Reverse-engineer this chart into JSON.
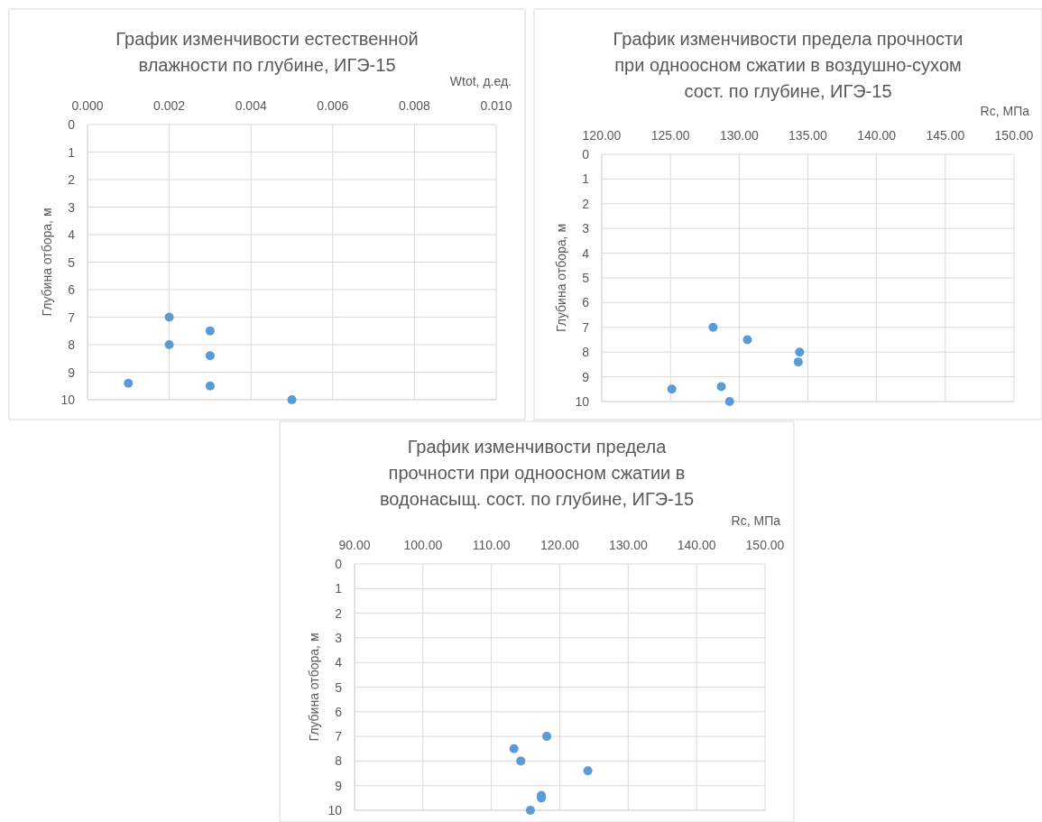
{
  "chart_data": [
    {
      "type": "scatter",
      "title": "График изменчивости естественной влажности по глубине, ИГЭ-15",
      "xlabel": "Wtot, д.ед.",
      "ylabel": "Глубина отбора, м",
      "grid": true,
      "marker": "circle",
      "xlim": [
        0,
        0.01
      ],
      "xticks": [
        {
          "value": 0,
          "label": "0.000"
        },
        {
          "value": 0.002,
          "label": "0.002"
        },
        {
          "value": 0.004,
          "label": "0.004"
        },
        {
          "value": 0.006,
          "label": "0.006"
        },
        {
          "value": 0.008,
          "label": "0.008"
        },
        {
          "value": 0.01,
          "label": "0.010"
        }
      ],
      "ylim": [
        10,
        0
      ],
      "yticks": [
        0,
        1,
        2,
        3,
        4,
        5,
        6,
        7,
        8,
        9,
        10
      ],
      "series": [
        {
          "color": "#5b9bd5",
          "x": [
            0.002,
            0.003,
            0.002,
            0.003,
            0.001,
            0.003,
            0.005
          ],
          "values": [
            7,
            7.5,
            8,
            8.4,
            9.4,
            9.5,
            10
          ]
        }
      ]
    },
    {
      "type": "scatter",
      "title": "График изменчивости предела прочности при одноосном сжатии в воздушно-сухом сост. по глубине, ИГЭ-15",
      "xlabel": "Rc, МПа",
      "ylabel": "Глубина отбора, м",
      "grid": true,
      "marker": "circle",
      "xlim": [
        120,
        150
      ],
      "xticks": [
        {
          "value": 120,
          "label": "120.00"
        },
        {
          "value": 125,
          "label": "125.00"
        },
        {
          "value": 130,
          "label": "130.00"
        },
        {
          "value": 135,
          "label": "135.00"
        },
        {
          "value": 140,
          "label": "140.00"
        },
        {
          "value": 145,
          "label": "145.00"
        },
        {
          "value": 150,
          "label": "150.00"
        }
      ],
      "ylim": [
        10,
        0
      ],
      "yticks": [
        0,
        1,
        2,
        3,
        4,
        5,
        6,
        7,
        8,
        9,
        10
      ],
      "series": [
        {
          "color": "#5b9bd5",
          "x": [
            128.1,
            130.6,
            134.4,
            134.3,
            125.1,
            128.7,
            129.3
          ],
          "values": [
            7,
            7.5,
            8,
            8.4,
            9.5,
            9.4,
            10
          ]
        }
      ]
    },
    {
      "type": "scatter",
      "title": "График изменчивости предела прочности при одноосном сжатии в водонасыщ. сост. по глубине, ИГЭ-15",
      "xlabel": "Rc, МПа",
      "ylabel": "Глубина отбора, м",
      "grid": true,
      "marker": "circle",
      "xlim": [
        90,
        150
      ],
      "xticks": [
        {
          "value": 90,
          "label": "90.00"
        },
        {
          "value": 100,
          "label": "100.00"
        },
        {
          "value": 110,
          "label": "110.00"
        },
        {
          "value": 120,
          "label": "120.00"
        },
        {
          "value": 130,
          "label": "130.00"
        },
        {
          "value": 140,
          "label": "140.00"
        },
        {
          "value": 150,
          "label": "150.00"
        }
      ],
      "ylim": [
        10,
        0
      ],
      "yticks": [
        0,
        1,
        2,
        3,
        4,
        5,
        6,
        7,
        8,
        9,
        10
      ],
      "series": [
        {
          "color": "#5b9bd5",
          "x": [
            118.1,
            113.3,
            114.3,
            124.1,
            117.3,
            117.3,
            115.7
          ],
          "values": [
            7,
            7.5,
            8,
            8.4,
            9.4,
            9.5,
            10
          ]
        }
      ]
    }
  ]
}
